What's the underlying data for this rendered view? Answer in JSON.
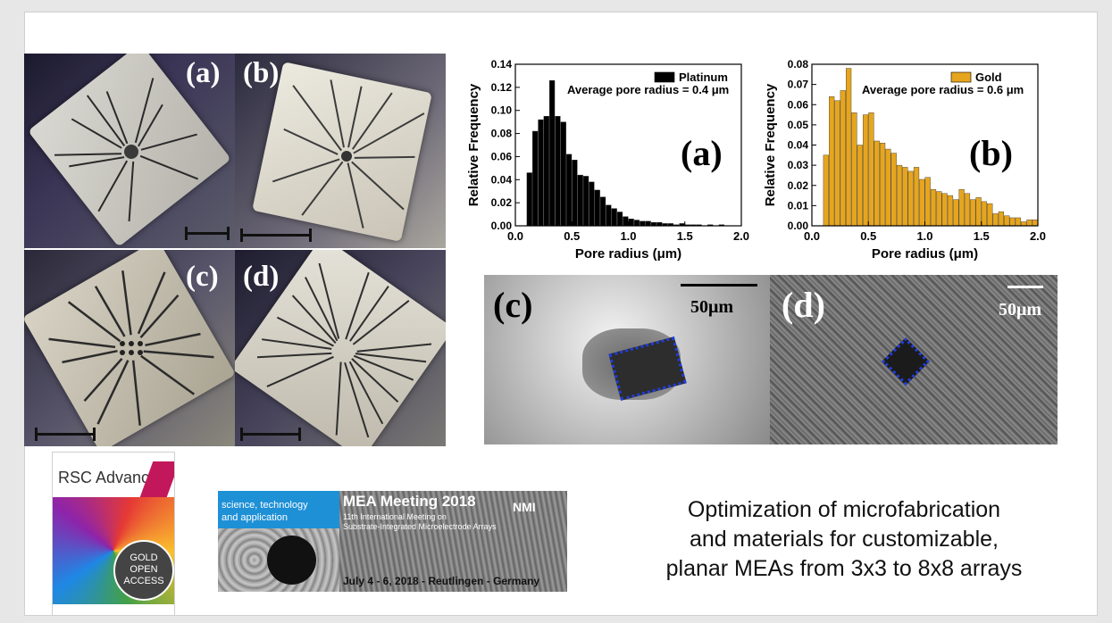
{
  "slide": {
    "background": "#ffffff"
  },
  "photos": {
    "labels": [
      "(a)",
      "(b)",
      "(c)",
      "(d)"
    ]
  },
  "charts": {
    "a_panel_label": "(a)",
    "b_panel_label": "(b)",
    "a_annotation": "Average pore radius = 0.4 μm",
    "b_annotation": "Average pore radius = 0.6 μm"
  },
  "chart_data": [
    {
      "type": "bar",
      "title": "",
      "xlabel": "Pore radius (μm)",
      "ylabel": "Relative Frequency",
      "xlim": [
        0.0,
        2.0
      ],
      "ylim": [
        0.0,
        0.14
      ],
      "xticks": [
        "0.0",
        "0.5",
        "1.0",
        "1.5",
        "2.0"
      ],
      "yticks": [
        "0.00",
        "0.02",
        "0.04",
        "0.06",
        "0.08",
        "0.10",
        "0.12",
        "0.14"
      ],
      "legend": "top-right",
      "series": [
        {
          "name": "Platinum",
          "color": "#000000",
          "x": [
            0.125,
            0.175,
            0.225,
            0.275,
            0.325,
            0.375,
            0.425,
            0.475,
            0.525,
            0.575,
            0.625,
            0.675,
            0.725,
            0.775,
            0.825,
            0.875,
            0.925,
            0.975,
            1.025,
            1.075,
            1.125,
            1.175,
            1.225,
            1.275,
            1.325,
            1.375,
            1.425,
            1.475,
            1.525,
            1.575,
            1.625,
            1.675,
            1.725,
            1.775,
            1.825,
            1.875
          ],
          "values": [
            0.046,
            0.082,
            0.092,
            0.095,
            0.126,
            0.095,
            0.09,
            0.062,
            0.057,
            0.044,
            0.043,
            0.038,
            0.031,
            0.025,
            0.018,
            0.015,
            0.012,
            0.008,
            0.006,
            0.005,
            0.004,
            0.004,
            0.003,
            0.003,
            0.002,
            0.002,
            0.001,
            0.002,
            0.001,
            0.001,
            0.001,
            0.0,
            0.001,
            0.0,
            0.001,
            0.0
          ]
        }
      ]
    },
    {
      "type": "bar",
      "title": "",
      "xlabel": "Pore radius (μm)",
      "ylabel": "Relative Frequency",
      "xlim": [
        0.0,
        2.0
      ],
      "ylim": [
        0.0,
        0.08
      ],
      "xticks": [
        "0.0",
        "0.5",
        "1.0",
        "1.5",
        "2.0"
      ],
      "yticks": [
        "0.00",
        "0.01",
        "0.02",
        "0.03",
        "0.04",
        "0.05",
        "0.06",
        "0.07",
        "0.08"
      ],
      "legend": "top-right",
      "series": [
        {
          "name": "Gold",
          "color": "#e6a51e",
          "x": [
            0.125,
            0.175,
            0.225,
            0.275,
            0.325,
            0.375,
            0.425,
            0.475,
            0.525,
            0.575,
            0.625,
            0.675,
            0.725,
            0.775,
            0.825,
            0.875,
            0.925,
            0.975,
            1.025,
            1.075,
            1.125,
            1.175,
            1.225,
            1.275,
            1.325,
            1.375,
            1.425,
            1.475,
            1.525,
            1.575,
            1.625,
            1.675,
            1.725,
            1.775,
            1.825,
            1.875,
            1.925,
            1.975
          ],
          "values": [
            0.035,
            0.064,
            0.062,
            0.067,
            0.078,
            0.056,
            0.04,
            0.055,
            0.056,
            0.042,
            0.041,
            0.038,
            0.036,
            0.03,
            0.029,
            0.027,
            0.029,
            0.023,
            0.024,
            0.018,
            0.017,
            0.016,
            0.015,
            0.013,
            0.018,
            0.016,
            0.013,
            0.014,
            0.012,
            0.011,
            0.006,
            0.007,
            0.005,
            0.004,
            0.004,
            0.002,
            0.003,
            0.003
          ]
        }
      ]
    }
  ],
  "sem": {
    "c_label": "(c)",
    "c_scale": "50μm",
    "d_label": "(d)",
    "d_scale": "50μm"
  },
  "journal_cover": {
    "title": "RSC Advances",
    "badge_line1": "GOLD",
    "badge_line2": "OPEN",
    "badge_line3": "ACCESS"
  },
  "banner": {
    "left_text_line1": "science, technology",
    "left_text_line2": "and application",
    "title": "MEA Meeting 2018",
    "subtitle_line1": "11th International Meeting on",
    "subtitle_line2": "Substrate-Integrated Microelectrode Arrays",
    "date": "July 4 - 6, 2018 - Reutlingen - Germany",
    "logo": "NMI"
  },
  "caption": "Optimization of microfabrication\nand materials for customizable,\nplanar MEAs from 3x3 to 8x8 arrays"
}
